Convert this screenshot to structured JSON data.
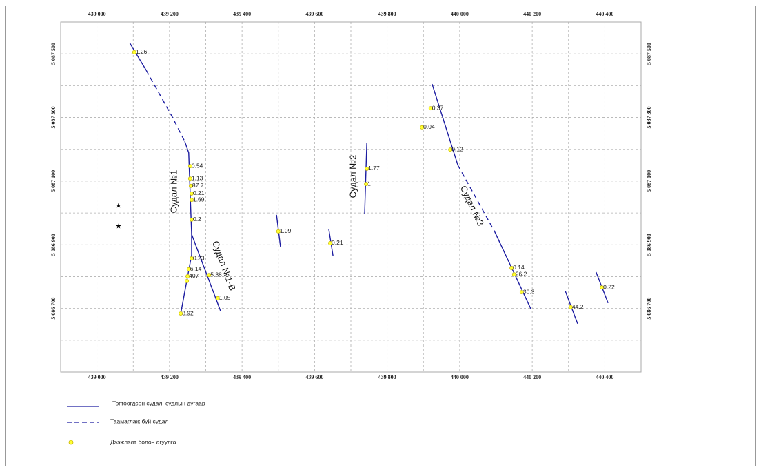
{
  "map": {
    "xlim": [
      438900,
      440500
    ],
    "ylim": [
      5086500,
      5087600
    ],
    "xticks": [
      {
        "value": 439000,
        "label": "439 000"
      },
      {
        "value": 439200,
        "label": "439 200"
      },
      {
        "value": 439400,
        "label": "439 400"
      },
      {
        "value": 439600,
        "label": "439 600"
      },
      {
        "value": 439800,
        "label": "439 800"
      },
      {
        "value": 440000,
        "label": "440 000"
      },
      {
        "value": 440200,
        "label": "440 200"
      },
      {
        "value": 440400,
        "label": "440 400"
      }
    ],
    "yticks": [
      {
        "value": 5087500,
        "label": "5 087 500"
      },
      {
        "value": 5087300,
        "label": "5 087 300"
      },
      {
        "value": 5087100,
        "label": "5 087 100"
      },
      {
        "value": 5086900,
        "label": "5 086 900"
      },
      {
        "value": 5086700,
        "label": "5 086 700"
      }
    ],
    "x_minor_ticks": [
      439100,
      439300,
      439500,
      439700,
      439900,
      440100,
      440300
    ],
    "y_minor_ticks": [
      5087400,
      5087200,
      5087000,
      5086800,
      5086600
    ],
    "vein_color": "#1c1ca0",
    "sample_color": "#ffff33",
    "veins": [
      {
        "style": "solid",
        "x": [
          439090,
          439136
        ],
        "y": [
          5087535,
          5087448
        ]
      },
      {
        "style": "dashed",
        "x": [
          439136,
          439208,
          439242
        ],
        "y": [
          5087448,
          5087301,
          5087225
        ]
      },
      {
        "style": "solid",
        "x": [
          439242,
          439253,
          439261,
          439261,
          439250,
          439231
        ],
        "y": [
          5087225,
          5087189,
          5086933,
          5086868,
          5086801,
          5086684
        ]
      },
      {
        "style": "solid",
        "x": [
          439261,
          439341
        ],
        "y": [
          5086933,
          5086691
        ]
      },
      {
        "style": "solid",
        "x": [
          439495,
          439506
        ],
        "y": [
          5086994,
          5086894
        ]
      },
      {
        "style": "solid",
        "x": [
          439639,
          439651
        ],
        "y": [
          5086950,
          5086864
        ]
      },
      {
        "style": "solid",
        "x": [
          439744,
          439738
        ],
        "y": [
          5087221,
          5086998
        ]
      },
      {
        "style": "solid",
        "x": [
          439924,
          439995
        ],
        "y": [
          5087405,
          5087150
        ]
      },
      {
        "style": "dashed",
        "x": [
          439995,
          440097
        ],
        "y": [
          5087150,
          5086940
        ]
      },
      {
        "style": "solid",
        "x": [
          440097,
          440196
        ],
        "y": [
          5086940,
          5086699
        ]
      },
      {
        "style": "solid",
        "x": [
          440291,
          440325
        ],
        "y": [
          5086755,
          5086652
        ]
      },
      {
        "style": "solid",
        "x": [
          440376,
          440409
        ],
        "y": [
          5086814,
          5086717
        ]
      }
    ],
    "samples": [
      {
        "x": 439103,
        "y": 5087505,
        "label": 1.26
      },
      {
        "x": 439257,
        "y": 5087147,
        "label": 0.54
      },
      {
        "x": 439257,
        "y": 5087108,
        "label": 1.13
      },
      {
        "x": 439259,
        "y": 5087085,
        "label": 87.7
      },
      {
        "x": 439261,
        "y": 5087061,
        "label": 0.21
      },
      {
        "x": 439261,
        "y": 5087041,
        "label": 1.69
      },
      {
        "x": 439261,
        "y": 5086979,
        "label": 0.2
      },
      {
        "x": 439261,
        "y": 5086857,
        "label": 0.23
      },
      {
        "x": 439253,
        "y": 5086823,
        "label": 6.14
      },
      {
        "x": 439250,
        "y": 5086801,
        "label": 407
      },
      {
        "x": 439248,
        "y": 5086786,
        "label": null
      },
      {
        "x": 439309,
        "y": 5086805,
        "label": 5.38
      },
      {
        "x": 439333,
        "y": 5086732,
        "label": 1.05
      },
      {
        "x": 439231,
        "y": 5086684,
        "label": 3.92
      },
      {
        "x": 439500,
        "y": 5086942,
        "label": 1.09
      },
      {
        "x": 439643,
        "y": 5086905,
        "label": 0.21
      },
      {
        "x": 439744,
        "y": 5087139,
        "label": 1.77
      },
      {
        "x": 439742,
        "y": 5087091,
        "label": 1
      },
      {
        "x": 439920,
        "y": 5087329,
        "label": 0.37
      },
      {
        "x": 439896,
        "y": 5087269,
        "label": 0.04
      },
      {
        "x": 439974,
        "y": 5087199,
        "label": 0.12
      },
      {
        "x": 440143,
        "y": 5086827,
        "label": 0.14
      },
      {
        "x": 440150,
        "y": 5086807,
        "label": 26.2
      },
      {
        "x": 440171,
        "y": 5086751,
        "label": 30.3
      },
      {
        "x": 440306,
        "y": 5086704,
        "label": 44.2
      },
      {
        "x": 440392,
        "y": 5086766,
        "label": 0.22
      }
    ],
    "vein_labels": [
      "Судал №1",
      "Судал №1-В",
      "Судал №2",
      "Судал №3"
    ],
    "legend": [
      "Тогтоогдсон судал, судлын дугаар",
      "Таамаглаж буй судал",
      "Дээжлэлт болон агуулга"
    ]
  }
}
